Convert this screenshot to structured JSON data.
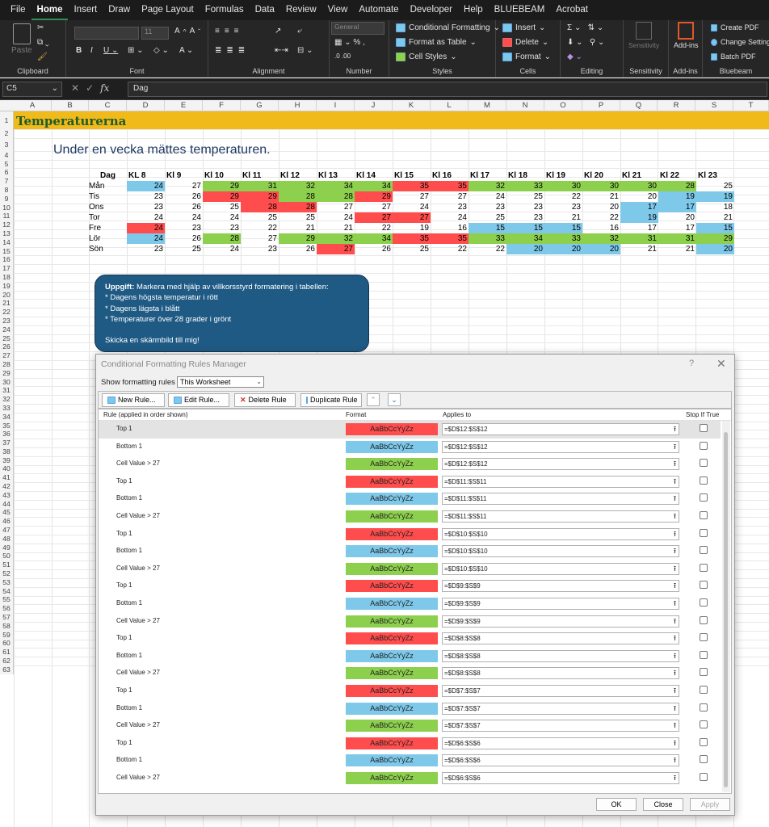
{
  "menu": [
    "File",
    "Home",
    "Insert",
    "Draw",
    "Page Layout",
    "Formulas",
    "Data",
    "Review",
    "View",
    "Automate",
    "Developer",
    "Help",
    "BLUEBEAM",
    "Acrobat"
  ],
  "ribbon": {
    "clipboard": {
      "paste": "Paste",
      "label": "Clipboard"
    },
    "font": {
      "size": "11",
      "label": "Font"
    },
    "alignment": {
      "label": "Alignment"
    },
    "number": {
      "format": "General",
      "label": "Number"
    },
    "styles": {
      "cond": "Conditional Formatting",
      "table": "Format as Table",
      "cell": "Cell Styles",
      "label": "Styles"
    },
    "cells": {
      "insert": "Insert",
      "delete": "Delete",
      "format": "Format",
      "label": "Cells"
    },
    "editing": {
      "label": "Editing"
    },
    "sensitivity": {
      "button": "Sensitivity",
      "label": "Sensitivity"
    },
    "addins": {
      "button": "Add-ins",
      "label": "Add-ins"
    },
    "bluebeam": {
      "create": "Create PDF",
      "change": "Change Settings",
      "batch": "Batch PDF",
      "label": "Bluebeam"
    }
  },
  "formula_bar": {
    "name_box": "C5",
    "fx": "fx",
    "content": "Dag"
  },
  "columns": [
    "A",
    "B",
    "C",
    "D",
    "E",
    "F",
    "G",
    "H",
    "I",
    "J",
    "K",
    "L",
    "M",
    "N",
    "O",
    "P",
    "Q",
    "R",
    "S",
    "T"
  ],
  "rows": [
    "1",
    "2",
    "3",
    "4",
    "5",
    "6",
    "7",
    "8",
    "9",
    "10",
    "11",
    "12",
    "13",
    "14",
    "15",
    "16",
    "17",
    "18",
    "19",
    "20",
    "21",
    "22",
    "23",
    "24",
    "25",
    "26",
    "27",
    "28",
    "29",
    "30",
    "31",
    "32",
    "33",
    "34",
    "35",
    "36",
    "37",
    "38",
    "39",
    "40",
    "41",
    "42",
    "43",
    "44",
    "45",
    "46",
    "47",
    "48",
    "49",
    "50",
    "51",
    "52",
    "53",
    "54",
    "55",
    "56",
    "57",
    "58",
    "59",
    "60",
    "61",
    "62",
    "63"
  ],
  "sheet": {
    "title": "Temperaturerna",
    "subtitle": "Under en vecka mättes temperaturen.",
    "header": [
      "Dag",
      "KL 8",
      "Kl 9",
      "Kl 10",
      "Kl 11",
      "Kl 12",
      "Kl 13",
      "Kl 14",
      "Kl 15",
      "Kl 16",
      "Kl 17",
      "Kl 18",
      "Kl 19",
      "Kl 20",
      "Kl 21",
      "Kl 22",
      "Kl 23"
    ],
    "data": [
      {
        "day": "Mån",
        "values": [
          24,
          27,
          29,
          31,
          32,
          34,
          34,
          35,
          35,
          32,
          33,
          30,
          30,
          30,
          28,
          25
        ]
      },
      {
        "day": "Tis",
        "values": [
          23,
          26,
          29,
          29,
          28,
          28,
          29,
          27,
          27,
          24,
          25,
          22,
          21,
          20,
          19,
          19
        ]
      },
      {
        "day": "Ons",
        "values": [
          23,
          26,
          25,
          28,
          28,
          27,
          27,
          24,
          23,
          23,
          23,
          23,
          20,
          17,
          17,
          18
        ]
      },
      {
        "day": "Tor",
        "values": [
          24,
          24,
          24,
          25,
          25,
          24,
          27,
          27,
          24,
          25,
          23,
          21,
          22,
          19,
          20,
          21
        ]
      },
      {
        "day": "Fre",
        "values": [
          24,
          23,
          23,
          22,
          21,
          21,
          22,
          19,
          16,
          15,
          15,
          15,
          16,
          17,
          17,
          15
        ]
      },
      {
        "day": "Lör",
        "values": [
          24,
          26,
          28,
          27,
          29,
          32,
          34,
          35,
          35,
          33,
          34,
          33,
          32,
          31,
          31,
          29
        ]
      },
      {
        "day": "Sön",
        "values": [
          23,
          25,
          24,
          23,
          26,
          27,
          26,
          25,
          22,
          22,
          20,
          20,
          20,
          21,
          21,
          20
        ]
      }
    ],
    "highlight": [
      [
        "b",
        "",
        "g",
        "g",
        "g",
        "g",
        "g",
        "r",
        "r",
        "g",
        "g",
        "g",
        "g",
        "g",
        "g",
        ""
      ],
      [
        "",
        "",
        "r",
        "r",
        "g",
        "g",
        "r",
        "",
        "",
        "",
        "",
        "",
        "",
        "",
        "b",
        "b"
      ],
      [
        "",
        "",
        "",
        "r",
        "r",
        "",
        "",
        "",
        "",
        "",
        "",
        "",
        "",
        "b",
        "b",
        ""
      ],
      [
        "",
        "",
        "",
        "",
        "",
        "",
        "r",
        "r",
        "",
        "",
        "",
        "",
        "",
        "b",
        "",
        ""
      ],
      [
        "r",
        "",
        "",
        "",
        "",
        "",
        "",
        "",
        "",
        "b",
        "b",
        "b",
        "",
        "",
        "",
        "b"
      ],
      [
        "b",
        "",
        "g",
        "",
        "g",
        "g",
        "g",
        "r",
        "r",
        "g",
        "g",
        "g",
        "g",
        "g",
        "g",
        "g"
      ],
      [
        "",
        "",
        "",
        "",
        "",
        "r",
        "",
        "",
        "",
        "",
        "b",
        "b",
        "b",
        "",
        "",
        "b"
      ]
    ],
    "colors": {
      "red": "#ff4d4d",
      "blue": "#7ec8ea",
      "green": "#8dd04e",
      "title_bg": "#f0ba1a"
    }
  },
  "task": {
    "lead": "Uppgift:",
    "intro": " Markera med hjälp av villkorsstyrd formatering i tabellen:",
    "bullets": [
      "* Dagens högsta temperatur i rött",
      "* Dagens lägsta i blått",
      "* Temperaturer över 28 grader i grönt"
    ],
    "footer": "Skicka en skärmbild till mig!"
  },
  "dialog": {
    "title": "Conditional Formatting Rules Manager",
    "help": "?",
    "close": "✕",
    "show_label": "Show formatting rules for:",
    "show_value": "This Worksheet",
    "buttons": {
      "new": "New Rule...",
      "edit": "Edit Rule...",
      "delete": "Delete Rule",
      "duplicate": "Duplicate Rule"
    },
    "columns": {
      "rule": "Rule (applied in order shown)",
      "format": "Format",
      "applies": "Applies to",
      "stop": "Stop If True"
    },
    "sample": "AaBbCcYyZz",
    "rules": [
      {
        "name": "Top 1",
        "fmt": "r",
        "applies": "=$D$12:$S$12"
      },
      {
        "name": "Bottom 1",
        "fmt": "b",
        "applies": "=$D$12:$S$12"
      },
      {
        "name": "Cell Value > 27",
        "fmt": "g",
        "applies": "=$D$12:$S$12"
      },
      {
        "name": "Top 1",
        "fmt": "r",
        "applies": "=$D$11:$S$11"
      },
      {
        "name": "Bottom 1",
        "fmt": "b",
        "applies": "=$D$11:$S$11"
      },
      {
        "name": "Cell Value > 27",
        "fmt": "g",
        "applies": "=$D$11:$S$11"
      },
      {
        "name": "Top 1",
        "fmt": "r",
        "applies": "=$D$10:$S$10"
      },
      {
        "name": "Bottom 1",
        "fmt": "b",
        "applies": "=$D$10:$S$10"
      },
      {
        "name": "Cell Value > 27",
        "fmt": "g",
        "applies": "=$D$10:$S$10"
      },
      {
        "name": "Top 1",
        "fmt": "r",
        "applies": "=$D$9:$S$9"
      },
      {
        "name": "Bottom 1",
        "fmt": "b",
        "applies": "=$D$9:$S$9"
      },
      {
        "name": "Cell Value > 27",
        "fmt": "g",
        "applies": "=$D$9:$S$9"
      },
      {
        "name": "Top 1",
        "fmt": "r",
        "applies": "=$D$8:$S$8"
      },
      {
        "name": "Bottom 1",
        "fmt": "b",
        "applies": "=$D$8:$S$8"
      },
      {
        "name": "Cell Value > 27",
        "fmt": "g",
        "applies": "=$D$8:$S$8"
      },
      {
        "name": "Top 1",
        "fmt": "r",
        "applies": "=$D$7:$S$7"
      },
      {
        "name": "Bottom 1",
        "fmt": "b",
        "applies": "=$D$7:$S$7"
      },
      {
        "name": "Cell Value > 27",
        "fmt": "g",
        "applies": "=$D$7:$S$7"
      },
      {
        "name": "Top 1",
        "fmt": "r",
        "applies": "=$D$6:$S$6"
      },
      {
        "name": "Bottom 1",
        "fmt": "b",
        "applies": "=$D$6:$S$6"
      },
      {
        "name": "Cell Value > 27",
        "fmt": "g",
        "applies": "=$D$6:$S$6"
      }
    ],
    "ok": "OK",
    "close_btn": "Close",
    "apply": "Apply"
  }
}
